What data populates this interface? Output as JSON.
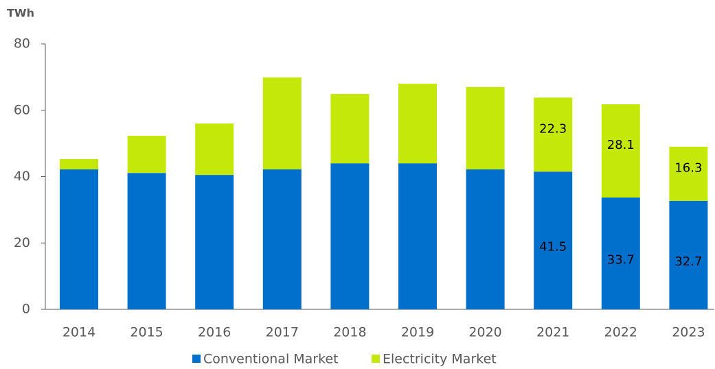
{
  "chart_data": {
    "type": "stacked_bar",
    "y_label": "TWh",
    "categories": [
      "2014",
      "2015",
      "2016",
      "2017",
      "2018",
      "2019",
      "2020",
      "2021",
      "2022",
      "2023"
    ],
    "series": [
      {
        "name": "Conventional Market",
        "color": "#0070cc",
        "values": [
          42.2,
          41.1,
          40.5,
          42.2,
          44.0,
          44.0,
          42.2,
          41.5,
          33.7,
          32.7
        ],
        "value_labels": [
          null,
          null,
          null,
          null,
          null,
          null,
          null,
          "41.5",
          "33.7",
          "32.7"
        ]
      },
      {
        "name": "Electricity Market",
        "color": "#c5e80b",
        "values": [
          3.1,
          11.2,
          15.5,
          27.7,
          20.9,
          24.0,
          24.8,
          22.3,
          28.1,
          16.3
        ],
        "value_labels": [
          null,
          null,
          null,
          null,
          null,
          null,
          null,
          "22.3",
          "28.1",
          "16.3"
        ]
      }
    ],
    "ylim": [
      0,
      80
    ],
    "yticks": [
      0,
      20,
      40,
      60,
      80
    ],
    "grid": false,
    "legend": "bottom"
  }
}
